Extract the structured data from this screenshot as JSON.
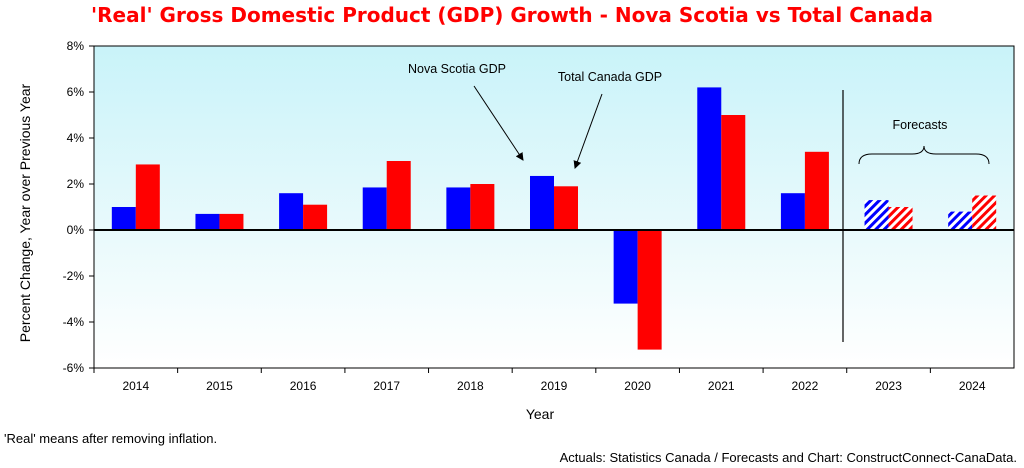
{
  "chart_data": {
    "type": "bar",
    "title": "'Real' Gross Domestic Product (GDP) Growth - Nova Scotia vs Total Canada",
    "xlabel": "Year",
    "ylabel": "Percent Change, Year over Previous Year",
    "ylim": [
      -6,
      8
    ],
    "y_ticks": [
      "8%",
      "6%",
      "4%",
      "2%",
      "0%",
      "-2%",
      "-4%",
      "-6%"
    ],
    "categories": [
      "2014",
      "2015",
      "2016",
      "2017",
      "2018",
      "2019",
      "2020",
      "2021",
      "2022",
      "2023",
      "2024"
    ],
    "series": [
      {
        "name": "Nova Scotia GDP",
        "color": "#0000ff",
        "values": [
          1.0,
          0.7,
          1.6,
          1.85,
          1.85,
          2.35,
          -3.2,
          6.2,
          1.6,
          1.3,
          0.8
        ]
      },
      {
        "name": "Total Canada GDP",
        "color": "#ff0000",
        "values": [
          2.85,
          0.7,
          1.1,
          3.0,
          2.0,
          1.9,
          -5.2,
          5.0,
          3.4,
          1.0,
          1.5
        ]
      }
    ],
    "forecast_categories": [
      "2023",
      "2024"
    ],
    "forecast_label": "Forecasts",
    "grid": false,
    "background": "gradient light cyan to white"
  },
  "notes": {
    "real_note": "'Real' means after removing inflation.",
    "source": "Actuals: Statistics Canada / Forecasts and Chart: ConstructConnect-CanaData."
  }
}
